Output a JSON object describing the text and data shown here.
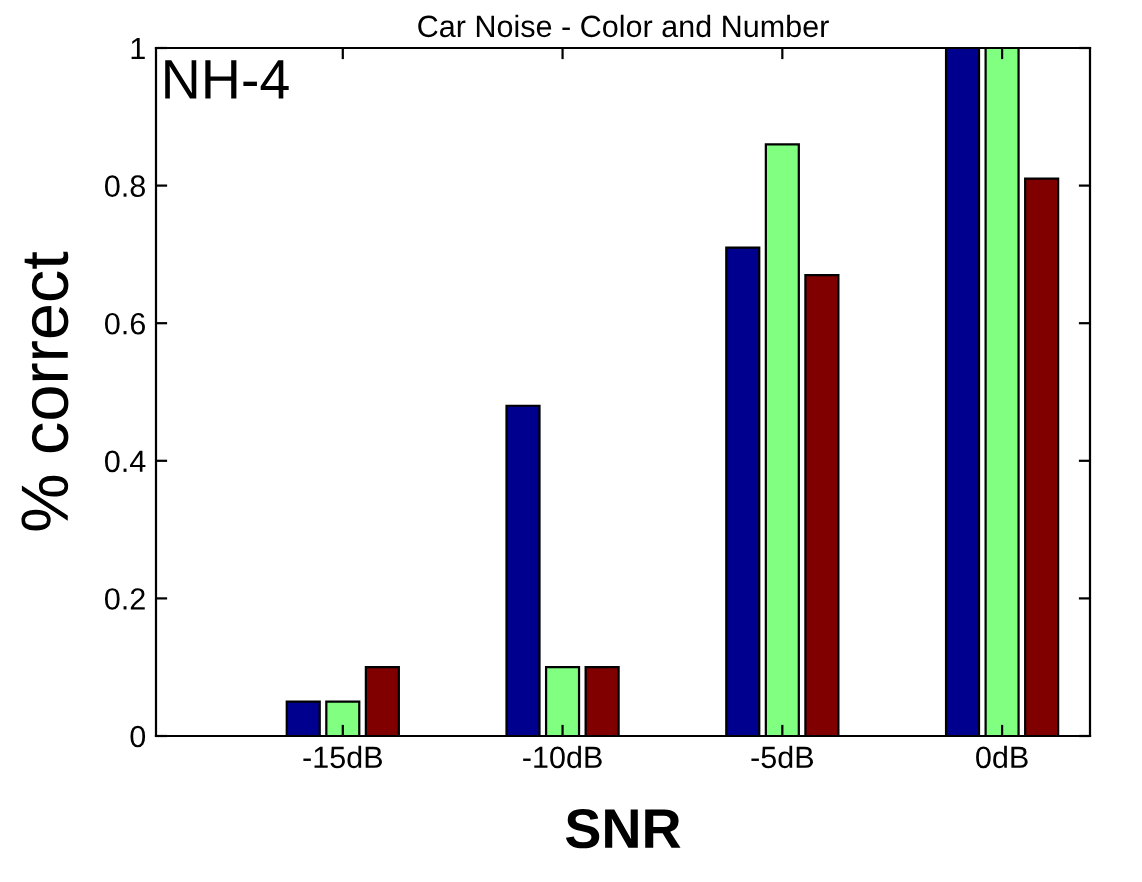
{
  "chart_data": {
    "type": "bar",
    "title": "Car Noise - Color and Number",
    "xlabel": "SNR",
    "ylabel": "% correct",
    "annotations": [
      "NH-4"
    ],
    "categories": [
      "-15dB",
      "-10dB",
      "-5dB",
      "0dB"
    ],
    "series": [
      {
        "color": "#00008f",
        "values": [
          0.05,
          0.48,
          0.71,
          1
        ]
      },
      {
        "color": "#80ff80",
        "values": [
          0.05,
          0.1,
          0.86,
          1
        ]
      },
      {
        "color": "#800000",
        "values": [
          0.1,
          0.1,
          0.67,
          0.81
        ]
      }
    ],
    "ylim": [
      0,
      1
    ],
    "yticks": [
      0,
      0.2,
      0.4,
      0.6,
      0.8,
      1
    ],
    "grid": false,
    "legend": false
  }
}
